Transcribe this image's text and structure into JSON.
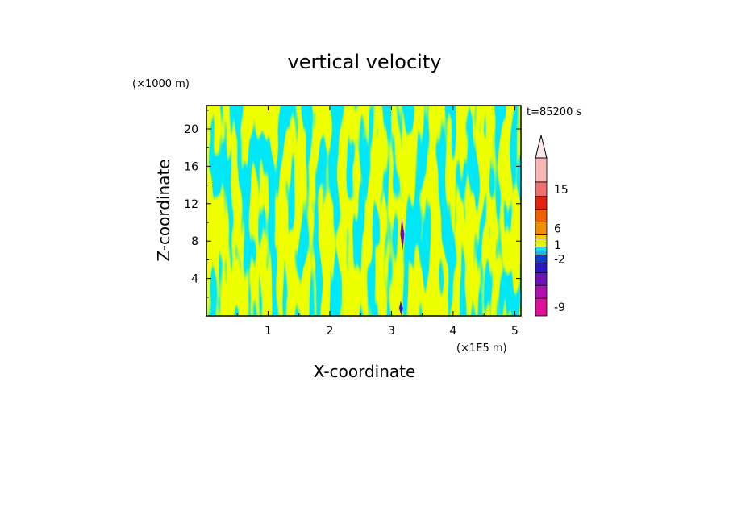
{
  "chart_data": {
    "type": "heatmap",
    "title": "vertical velocity",
    "xlabel": "X-coordinate",
    "ylabel": "Z-coordinate",
    "x_unit": "(×1E5 m)",
    "y_unit": "(×1000 m)",
    "time_label": "t=85200 s",
    "xlim": [
      0,
      5.1
    ],
    "ylim": [
      0,
      22.5
    ],
    "x_ticks": [
      "1",
      "2",
      "3",
      "4",
      "5"
    ],
    "x_tick_values": [
      1,
      2,
      3,
      4,
      5
    ],
    "y_ticks": [
      "4",
      "8",
      "12",
      "16",
      "20"
    ],
    "y_tick_values": [
      4,
      8,
      12,
      16,
      20
    ],
    "colorbar": {
      "levels": [
        {
          "color": "#e0109a",
          "label": "-9"
        },
        {
          "color": "#b010b0",
          "label": ""
        },
        {
          "color": "#7010b8",
          "label": ""
        },
        {
          "color": "#2818c8",
          "label": ""
        },
        {
          "color": "#0a40d8",
          "label": "-2"
        },
        {
          "color": "#20b8e0",
          "label": ""
        },
        {
          "color": "#00e8f8",
          "label": ""
        },
        {
          "color": "#d8ff00",
          "label": "1"
        },
        {
          "color": "#f0e800",
          "label": ""
        },
        {
          "color": "#f8c800",
          "label": ""
        },
        {
          "color": "#f09000",
          "label": "6"
        },
        {
          "color": "#f06000",
          "label": ""
        },
        {
          "color": "#e82010",
          "label": ""
        },
        {
          "color": "#f07070",
          "label": "15"
        },
        {
          "color": "#f8b8b8",
          "label": ""
        }
      ],
      "extension_color": "#fce8e8"
    },
    "dominant_colors": {
      "positive_weak": "#d8ff00",
      "negative_weak": "#00e8f8"
    },
    "features": [
      {
        "x": 3.17,
        "z_min": 7.0,
        "z_max": 10.5,
        "color": "#7010b8"
      },
      {
        "x": 3.15,
        "z_min": 0.0,
        "z_max": 1.6,
        "color": "#2818c8"
      }
    ]
  }
}
